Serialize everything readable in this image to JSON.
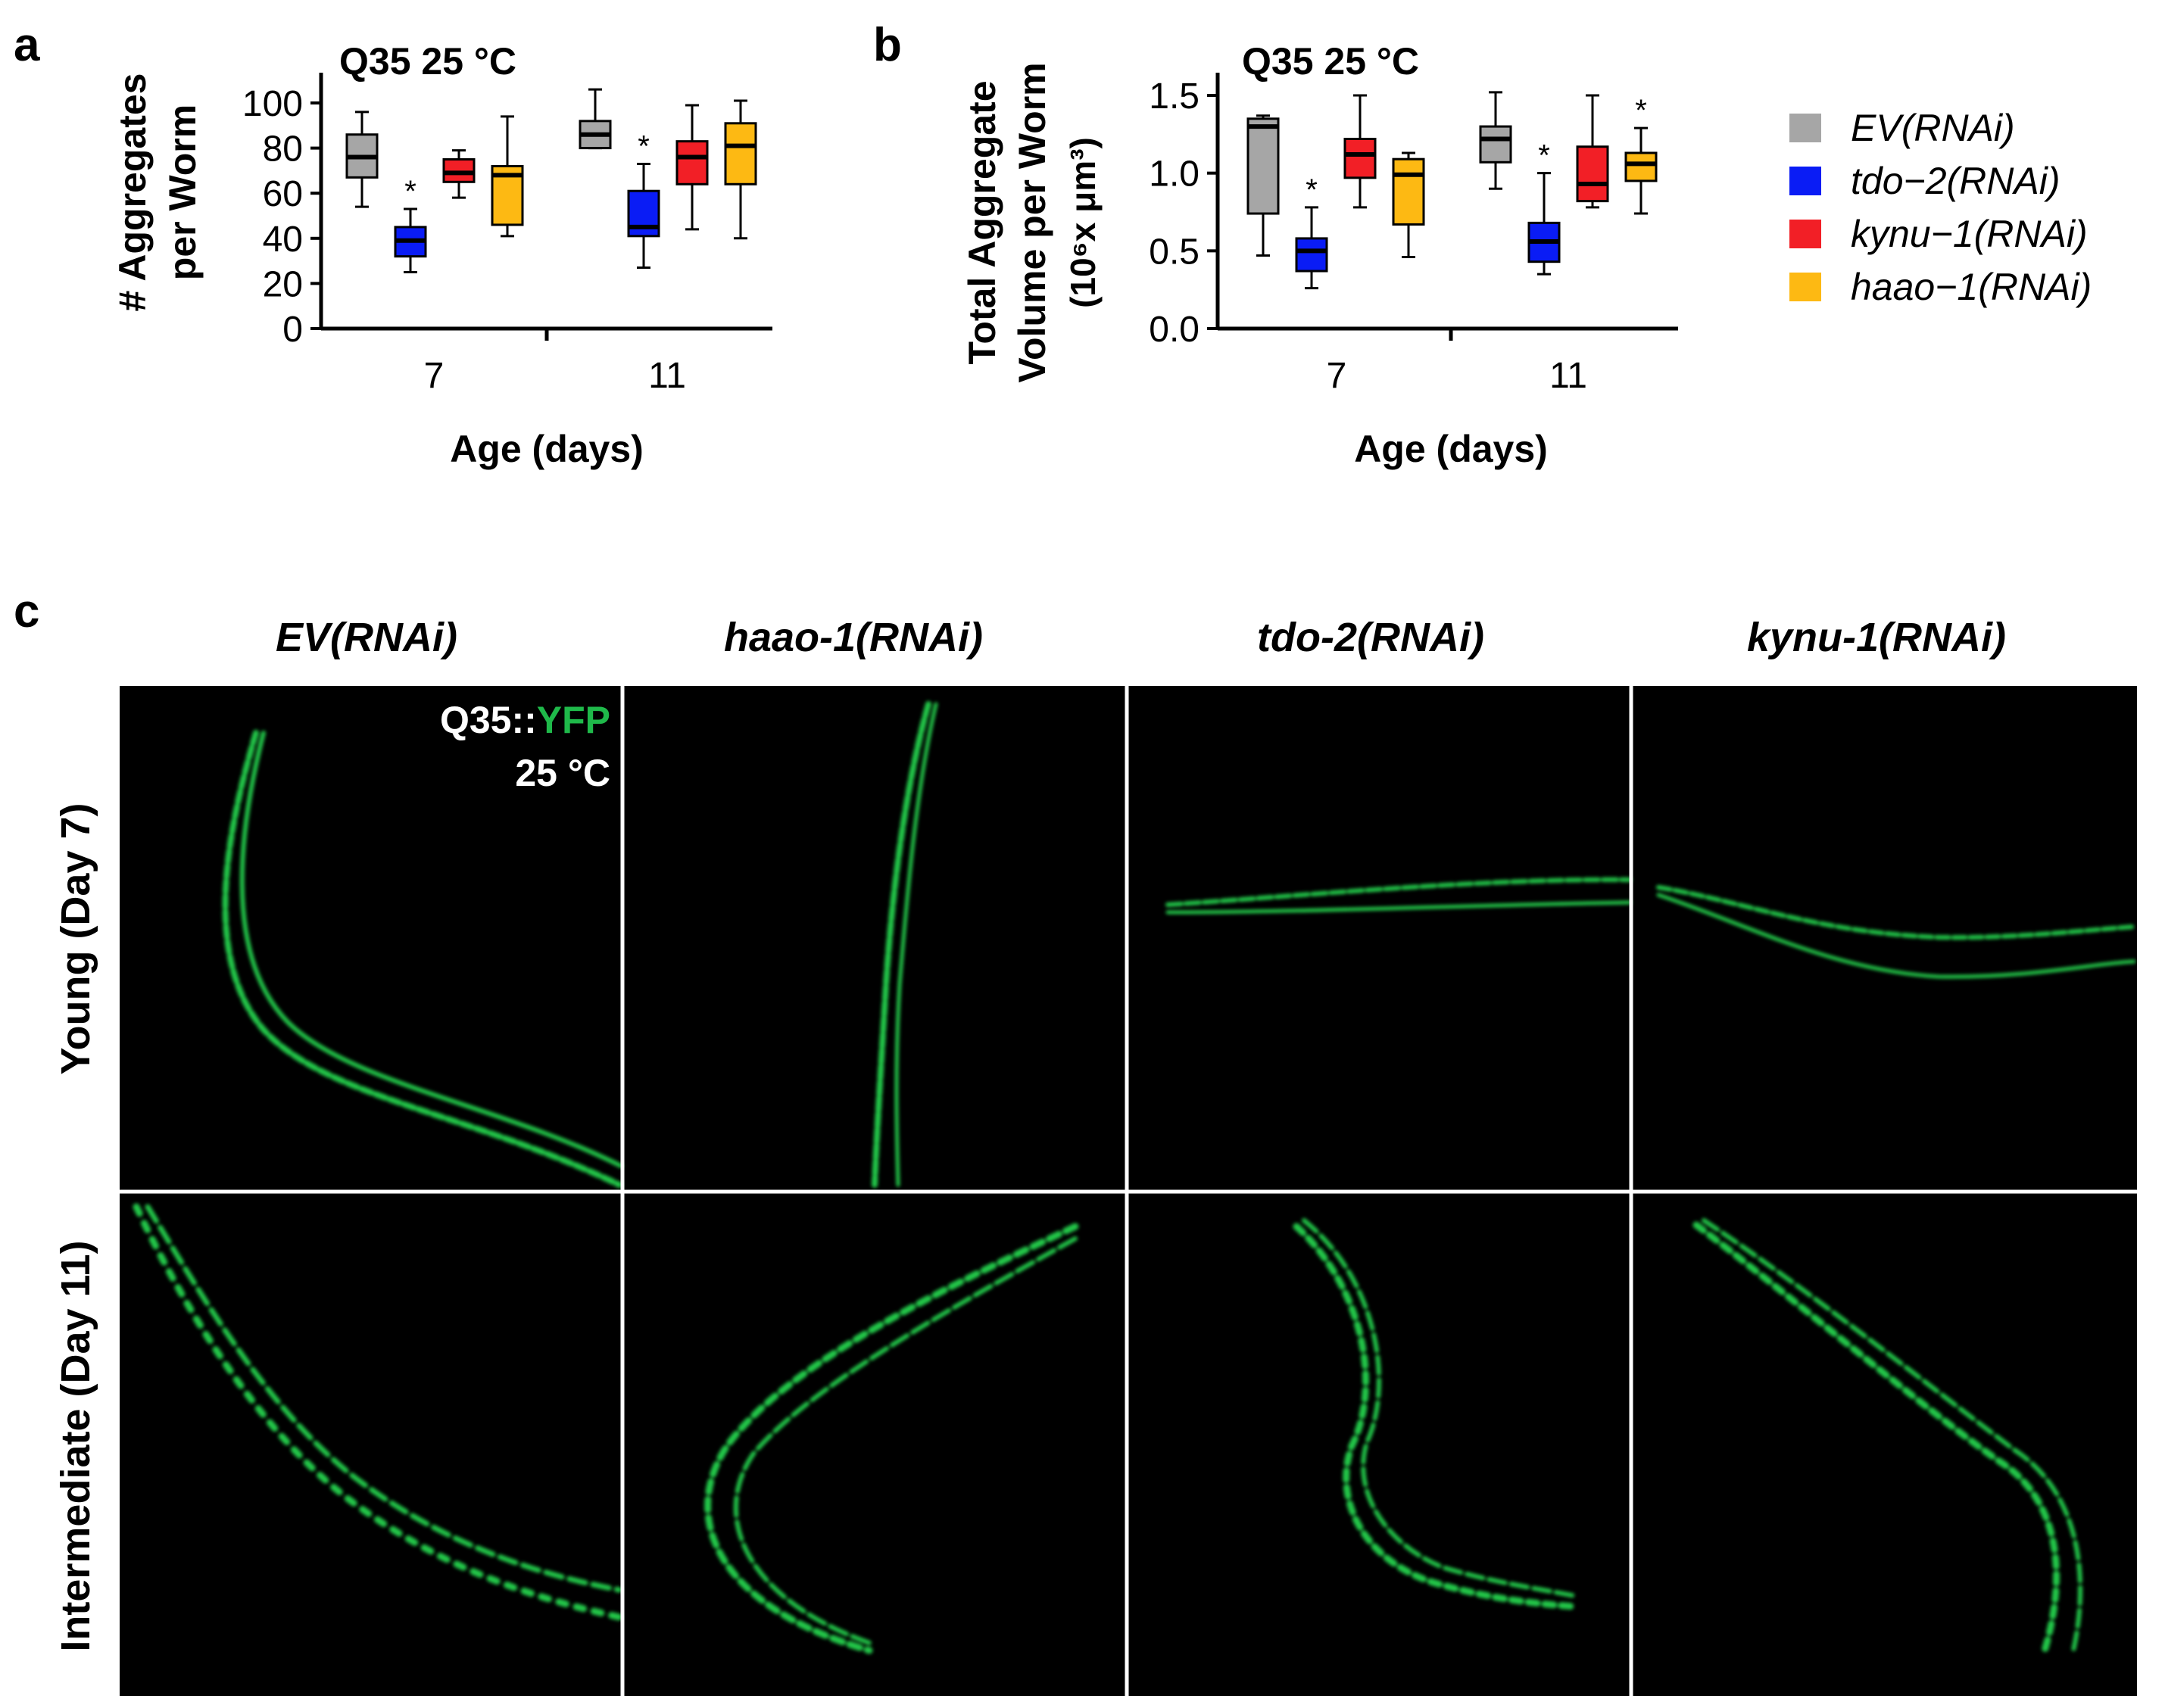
{
  "panel_labels": {
    "a": "a",
    "b": "b",
    "c": "c"
  },
  "colors": {
    "axis": "#000000",
    "image_bg": "#000000",
    "worm_green": "#22c84a",
    "yfp_label": "#1fb94a",
    "text_white": "#ffffff"
  },
  "legend": [
    {
      "label": "EV(RNAi)",
      "color": "#a6a6a6"
    },
    {
      "label": "tdo−2(RNAi)",
      "color": "#0a1cf5"
    },
    {
      "label": "kynu−1(RNAi)",
      "color": "#f21f26"
    },
    {
      "label": "haao−1(RNAi)",
      "color": "#fdb913"
    }
  ],
  "chart_data": [
    {
      "type": "box",
      "title": "Q35 25 °C",
      "xlabel": "Age (days)",
      "ylabel_lines": [
        "# Aggregates",
        "per Worm"
      ],
      "ylim": [
        0,
        100
      ],
      "yticks": [
        "0",
        "20",
        "40",
        "60",
        "80",
        "100"
      ],
      "categories": [
        "7",
        "11"
      ],
      "series": [
        {
          "name": "EV(RNAi)",
          "color": "#a6a6a6",
          "boxes": [
            {
              "min": 54,
              "q1": 67,
              "median": 76,
              "q3": 86,
              "max": 96,
              "sig": ""
            },
            {
              "min": 80,
              "q1": 80,
              "median": 86,
              "q3": 92,
              "max": 106,
              "sig": ""
            }
          ]
        },
        {
          "name": "tdo−2(RNAi)",
          "color": "#0a1cf5",
          "boxes": [
            {
              "min": 25,
              "q1": 32,
              "median": 39,
              "q3": 45,
              "max": 53,
              "sig": "*"
            },
            {
              "min": 27,
              "q1": 41,
              "median": 45,
              "q3": 61,
              "max": 73,
              "sig": "*"
            }
          ]
        },
        {
          "name": "kynu−1(RNAi)",
          "color": "#f21f26",
          "boxes": [
            {
              "min": 58,
              "q1": 65,
              "median": 69,
              "q3": 75,
              "max": 79,
              "sig": ""
            },
            {
              "min": 44,
              "q1": 64,
              "median": 76,
              "q3": 83,
              "max": 99,
              "sig": ""
            }
          ]
        },
        {
          "name": "haao−1(RNAi)",
          "color": "#fdb913",
          "boxes": [
            {
              "min": 41,
              "q1": 46,
              "median": 68,
              "q3": 72,
              "max": 94,
              "sig": ""
            },
            {
              "min": 40,
              "q1": 64,
              "median": 81,
              "q3": 91,
              "max": 101,
              "sig": ""
            }
          ]
        }
      ]
    },
    {
      "type": "box",
      "title": "Q35 25 °C",
      "xlabel": "Age (days)",
      "ylabel_lines": [
        "Total Aggregate",
        "Volume per Worm",
        "(10⁶x μm³)"
      ],
      "ylim": [
        0,
        1.5
      ],
      "yticks": [
        "0.0",
        "0.5",
        "1.0",
        "1.5"
      ],
      "categories": [
        "7",
        "11"
      ],
      "series": [
        {
          "name": "EV(RNAi)",
          "color": "#a6a6a6",
          "boxes": [
            {
              "min": 0.47,
              "q1": 0.74,
              "median": 1.3,
              "q3": 1.35,
              "max": 1.37,
              "sig": ""
            },
            {
              "min": 0.9,
              "q1": 1.07,
              "median": 1.22,
              "q3": 1.3,
              "max": 1.52,
              "sig": ""
            }
          ]
        },
        {
          "name": "tdo−2(RNAi)",
          "color": "#0a1cf5",
          "boxes": [
            {
              "min": 0.26,
              "q1": 0.37,
              "median": 0.5,
              "q3": 0.58,
              "max": 0.78,
              "sig": "*"
            },
            {
              "min": 0.35,
              "q1": 0.43,
              "median": 0.56,
              "q3": 0.68,
              "max": 1.0,
              "sig": "*"
            }
          ]
        },
        {
          "name": "kynu−1(RNAi)",
          "color": "#f21f26",
          "boxes": [
            {
              "min": 0.78,
              "q1": 0.97,
              "median": 1.12,
              "q3": 1.22,
              "max": 1.5,
              "sig": ""
            },
            {
              "min": 0.78,
              "q1": 0.82,
              "median": 0.93,
              "q3": 1.17,
              "max": 1.5,
              "sig": ""
            }
          ]
        },
        {
          "name": "haao−1(RNAi)",
          "color": "#fdb913",
          "boxes": [
            {
              "min": 0.46,
              "q1": 0.67,
              "median": 0.99,
              "q3": 1.09,
              "max": 1.13,
              "sig": ""
            },
            {
              "min": 0.74,
              "q1": 0.95,
              "median": 1.06,
              "q3": 1.13,
              "max": 1.29,
              "sig": "*"
            }
          ]
        }
      ]
    }
  ],
  "panel_c": {
    "column_titles": [
      "EV(RNAi)",
      "haao-1(RNAi)",
      "tdo-2(RNAi)",
      "kynu-1(RNAi)"
    ],
    "row_titles": [
      "Young (Day 7)",
      "Intermediate (Day 11)"
    ],
    "overlay_prefix": "Q35::",
    "overlay_highlight": "YFP",
    "overlay_temp": "25 °C"
  }
}
